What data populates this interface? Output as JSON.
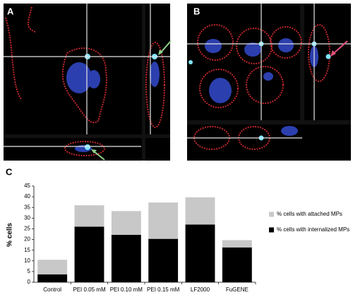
{
  "panels": {
    "a": "A",
    "b": "B",
    "c": "C"
  },
  "chart_data": {
    "type": "stacked-bar",
    "y_label": "% cells",
    "categories": [
      "Control",
      "PEI 0.05 mM",
      "PEI 0.10 mM",
      "PEI 0.15 mM",
      "LF2000",
      "FuGENE"
    ],
    "series": [
      {
        "name": "% cells with attached MPs",
        "color": "#c8c8c8",
        "values": [
          6.8,
          10,
          11.1,
          17,
          12.7,
          3.4
        ]
      },
      {
        "name": "% cells with internalized MPs",
        "color": "#000000",
        "values": [
          3.7,
          26,
          22.2,
          20.3,
          27,
          16.3
        ]
      }
    ],
    "stack_order": "last-at-bottom",
    "ylim": [
      0,
      45
    ],
    "yticks": [
      0,
      5,
      10,
      15,
      20,
      25,
      30,
      35,
      40,
      45
    ],
    "grid": false
  }
}
